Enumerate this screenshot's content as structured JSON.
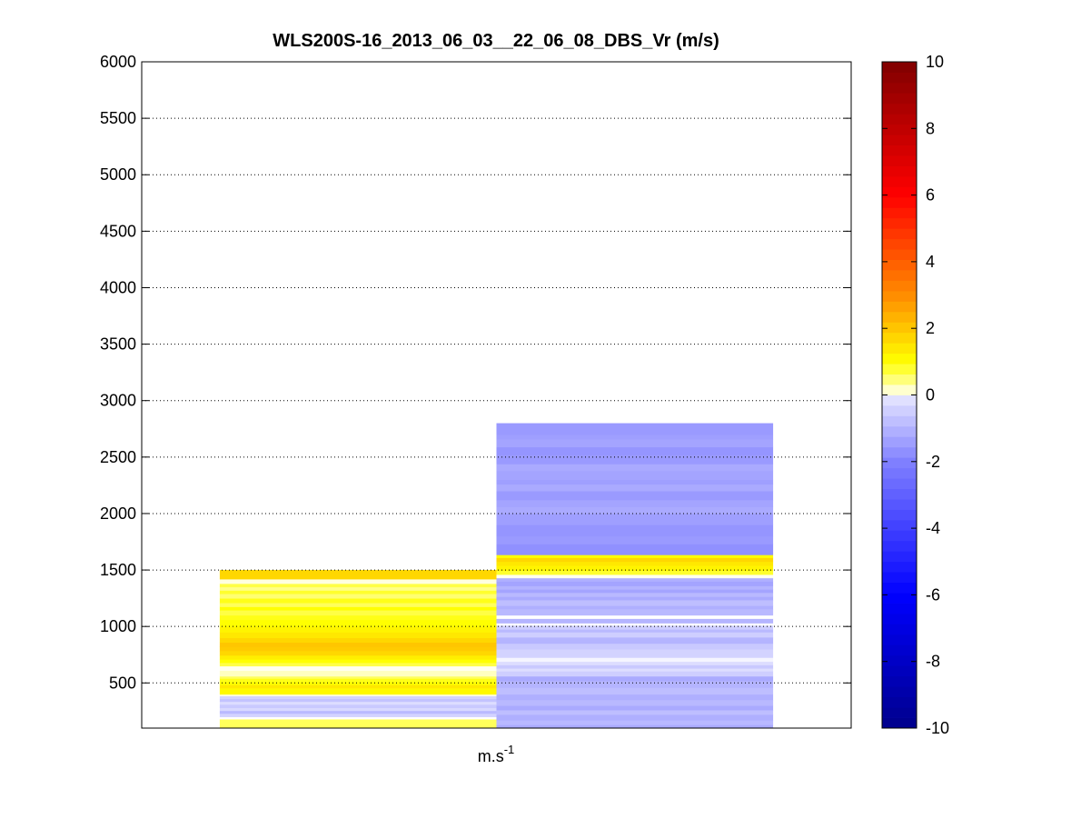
{
  "chart_data": {
    "type": "heatmap",
    "title": "WLS200S-16_2013_06_03__22_06_08_DBS_Vr (m/s)",
    "xlabel_base": "m.s",
    "xlabel_sup": "-1",
    "ylim": [
      100,
      6000
    ],
    "yticks": [
      500,
      1000,
      1500,
      2000,
      2500,
      3000,
      3500,
      4000,
      4500,
      5000,
      5500,
      6000
    ],
    "grid": "horizontal-dotted",
    "colorbar": {
      "range": [
        -10,
        10
      ],
      "ticks": [
        -10,
        -8,
        -6,
        -4,
        -2,
        0,
        2,
        4,
        6,
        8,
        10
      ],
      "levels": 64
    },
    "columns": [
      {
        "x_range": [
          0.11,
          0.5
        ],
        "segments": [
          {
            "y0": 100,
            "y1": 180,
            "v": 0.6
          },
          {
            "y0": 180,
            "y1": 200,
            "v": 0.0
          },
          {
            "y0": 200,
            "y1": 230,
            "v": -0.4
          },
          {
            "y0": 230,
            "y1": 255,
            "v": -0.9
          },
          {
            "y0": 255,
            "y1": 280,
            "v": -0.3
          },
          {
            "y0": 280,
            "y1": 310,
            "v": -0.6
          },
          {
            "y0": 310,
            "y1": 335,
            "v": -0.2
          },
          {
            "y0": 335,
            "y1": 360,
            "v": -0.7
          },
          {
            "y0": 360,
            "y1": 385,
            "v": -0.4
          },
          {
            "y0": 385,
            "y1": 400,
            "v": 0.1
          },
          {
            "y0": 400,
            "y1": 455,
            "v": 1.1
          },
          {
            "y0": 455,
            "y1": 485,
            "v": 1.4
          },
          {
            "y0": 485,
            "y1": 510,
            "v": 1.0
          },
          {
            "y0": 510,
            "y1": 540,
            "v": 0.9
          },
          {
            "y0": 540,
            "y1": 560,
            "v": 0.6
          },
          {
            "y0": 560,
            "y1": 610,
            "v": 0.2
          },
          {
            "y0": 610,
            "y1": 650,
            "v": 0.05
          },
          {
            "y0": 650,
            "y1": 680,
            "v": 0.7
          },
          {
            "y0": 680,
            "y1": 710,
            "v": 1.0
          },
          {
            "y0": 710,
            "y1": 745,
            "v": 1.3
          },
          {
            "y0": 745,
            "y1": 785,
            "v": 1.7
          },
          {
            "y0": 785,
            "y1": 820,
            "v": 1.9
          },
          {
            "y0": 820,
            "y1": 860,
            "v": 2.0
          },
          {
            "y0": 860,
            "y1": 900,
            "v": 1.7
          },
          {
            "y0": 900,
            "y1": 950,
            "v": 1.4
          },
          {
            "y0": 950,
            "y1": 1000,
            "v": 1.2
          },
          {
            "y0": 1000,
            "y1": 1060,
            "v": 1.0
          },
          {
            "y0": 1060,
            "y1": 1100,
            "v": 0.9
          },
          {
            "y0": 1100,
            "y1": 1145,
            "v": 0.7
          },
          {
            "y0": 1145,
            "y1": 1175,
            "v": 1.0
          },
          {
            "y0": 1175,
            "y1": 1210,
            "v": 0.6
          },
          {
            "y0": 1210,
            "y1": 1250,
            "v": 0.9
          },
          {
            "y0": 1250,
            "y1": 1290,
            "v": 0.5
          },
          {
            "y0": 1290,
            "y1": 1320,
            "v": 0.8
          },
          {
            "y0": 1320,
            "y1": 1350,
            "v": 0.4
          },
          {
            "y0": 1350,
            "y1": 1380,
            "v": 0.7
          },
          {
            "y0": 1380,
            "y1": 1420,
            "v": 0.1
          },
          {
            "y0": 1420,
            "y1": 1500,
            "v": 1.7
          }
        ]
      },
      {
        "x_range": [
          0.5,
          0.89
        ],
        "segments": [
          {
            "y0": 100,
            "y1": 130,
            "v": -1.2
          },
          {
            "y0": 130,
            "y1": 170,
            "v": -0.9
          },
          {
            "y0": 170,
            "y1": 220,
            "v": -1.1
          },
          {
            "y0": 220,
            "y1": 260,
            "v": -0.8
          },
          {
            "y0": 260,
            "y1": 300,
            "v": -1.2
          },
          {
            "y0": 300,
            "y1": 350,
            "v": -0.9
          },
          {
            "y0": 350,
            "y1": 400,
            "v": -1.1
          },
          {
            "y0": 400,
            "y1": 460,
            "v": -0.8
          },
          {
            "y0": 460,
            "y1": 520,
            "v": -1.0
          },
          {
            "y0": 520,
            "y1": 560,
            "v": -1.2
          },
          {
            "y0": 560,
            "y1": 605,
            "v": -0.5
          },
          {
            "y0": 605,
            "y1": 630,
            "v": -0.2
          },
          {
            "y0": 630,
            "y1": 660,
            "v": -0.6
          },
          {
            "y0": 660,
            "y1": 690,
            "v": -0.2
          },
          {
            "y0": 690,
            "y1": 725,
            "v": -0.05
          },
          {
            "y0": 725,
            "y1": 800,
            "v": -0.4
          },
          {
            "y0": 800,
            "y1": 850,
            "v": -0.6
          },
          {
            "y0": 850,
            "y1": 905,
            "v": -1.0
          },
          {
            "y0": 905,
            "y1": 950,
            "v": -0.5
          },
          {
            "y0": 950,
            "y1": 975,
            "v": -0.9
          },
          {
            "y0": 975,
            "y1": 1010,
            "v": -0.5
          },
          {
            "y0": 1010,
            "y1": 1030,
            "v": 0.0
          },
          {
            "y0": 1030,
            "y1": 1070,
            "v": -1.0
          },
          {
            "y0": 1070,
            "y1": 1100,
            "v": 0.0
          },
          {
            "y0": 1100,
            "y1": 1155,
            "v": -0.9
          },
          {
            "y0": 1155,
            "y1": 1185,
            "v": -1.1
          },
          {
            "y0": 1185,
            "y1": 1235,
            "v": -0.8
          },
          {
            "y0": 1235,
            "y1": 1265,
            "v": -1.2
          },
          {
            "y0": 1265,
            "y1": 1300,
            "v": -0.9
          },
          {
            "y0": 1300,
            "y1": 1330,
            "v": -1.3
          },
          {
            "y0": 1330,
            "y1": 1360,
            "v": -1.0
          },
          {
            "y0": 1360,
            "y1": 1400,
            "v": -1.3
          },
          {
            "y0": 1400,
            "y1": 1430,
            "v": -1.1
          },
          {
            "y0": 1430,
            "y1": 1460,
            "v": 0.05
          },
          {
            "y0": 1460,
            "y1": 1495,
            "v": 0.8
          },
          {
            "y0": 1495,
            "y1": 1540,
            "v": 1.2
          },
          {
            "y0": 1540,
            "y1": 1575,
            "v": 1.4
          },
          {
            "y0": 1575,
            "y1": 1610,
            "v": 1.7
          },
          {
            "y0": 1610,
            "y1": 1635,
            "v": 1.0
          },
          {
            "y0": 1635,
            "y1": 1730,
            "v": -1.7
          },
          {
            "y0": 1730,
            "y1": 1800,
            "v": -1.5
          },
          {
            "y0": 1800,
            "y1": 1900,
            "v": -1.6
          },
          {
            "y0": 1900,
            "y1": 2000,
            "v": -1.4
          },
          {
            "y0": 2000,
            "y1": 2060,
            "v": -1.2
          },
          {
            "y0": 2060,
            "y1": 2120,
            "v": -1.3
          },
          {
            "y0": 2120,
            "y1": 2200,
            "v": -1.5
          },
          {
            "y0": 2200,
            "y1": 2260,
            "v": -1.2
          },
          {
            "y0": 2260,
            "y1": 2300,
            "v": -1.4
          },
          {
            "y0": 2300,
            "y1": 2380,
            "v": -1.3
          },
          {
            "y0": 2380,
            "y1": 2440,
            "v": -1.2
          },
          {
            "y0": 2440,
            "y1": 2520,
            "v": -1.5
          },
          {
            "y0": 2520,
            "y1": 2590,
            "v": -1.6
          },
          {
            "y0": 2590,
            "y1": 2660,
            "v": -1.3
          },
          {
            "y0": 2660,
            "y1": 2700,
            "v": -1.4
          },
          {
            "y0": 2700,
            "y1": 2800,
            "v": -1.5
          }
        ]
      }
    ]
  }
}
